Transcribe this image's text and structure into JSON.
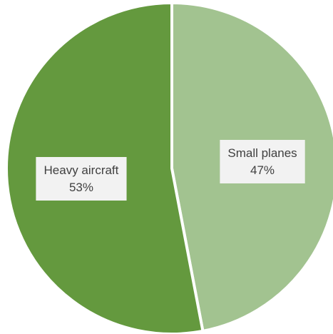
{
  "chart_data": {
    "type": "pie",
    "title": "",
    "slices": [
      {
        "label": "Small planes",
        "value": 47,
        "display": "47%",
        "color": "#a2c390"
      },
      {
        "label": "Heavy aircraft",
        "value": 53,
        "display": "53%",
        "color": "#64993e"
      }
    ],
    "start_angle_deg": 0,
    "direction": "clockwise",
    "legend": "none",
    "data_labels": "inside"
  }
}
